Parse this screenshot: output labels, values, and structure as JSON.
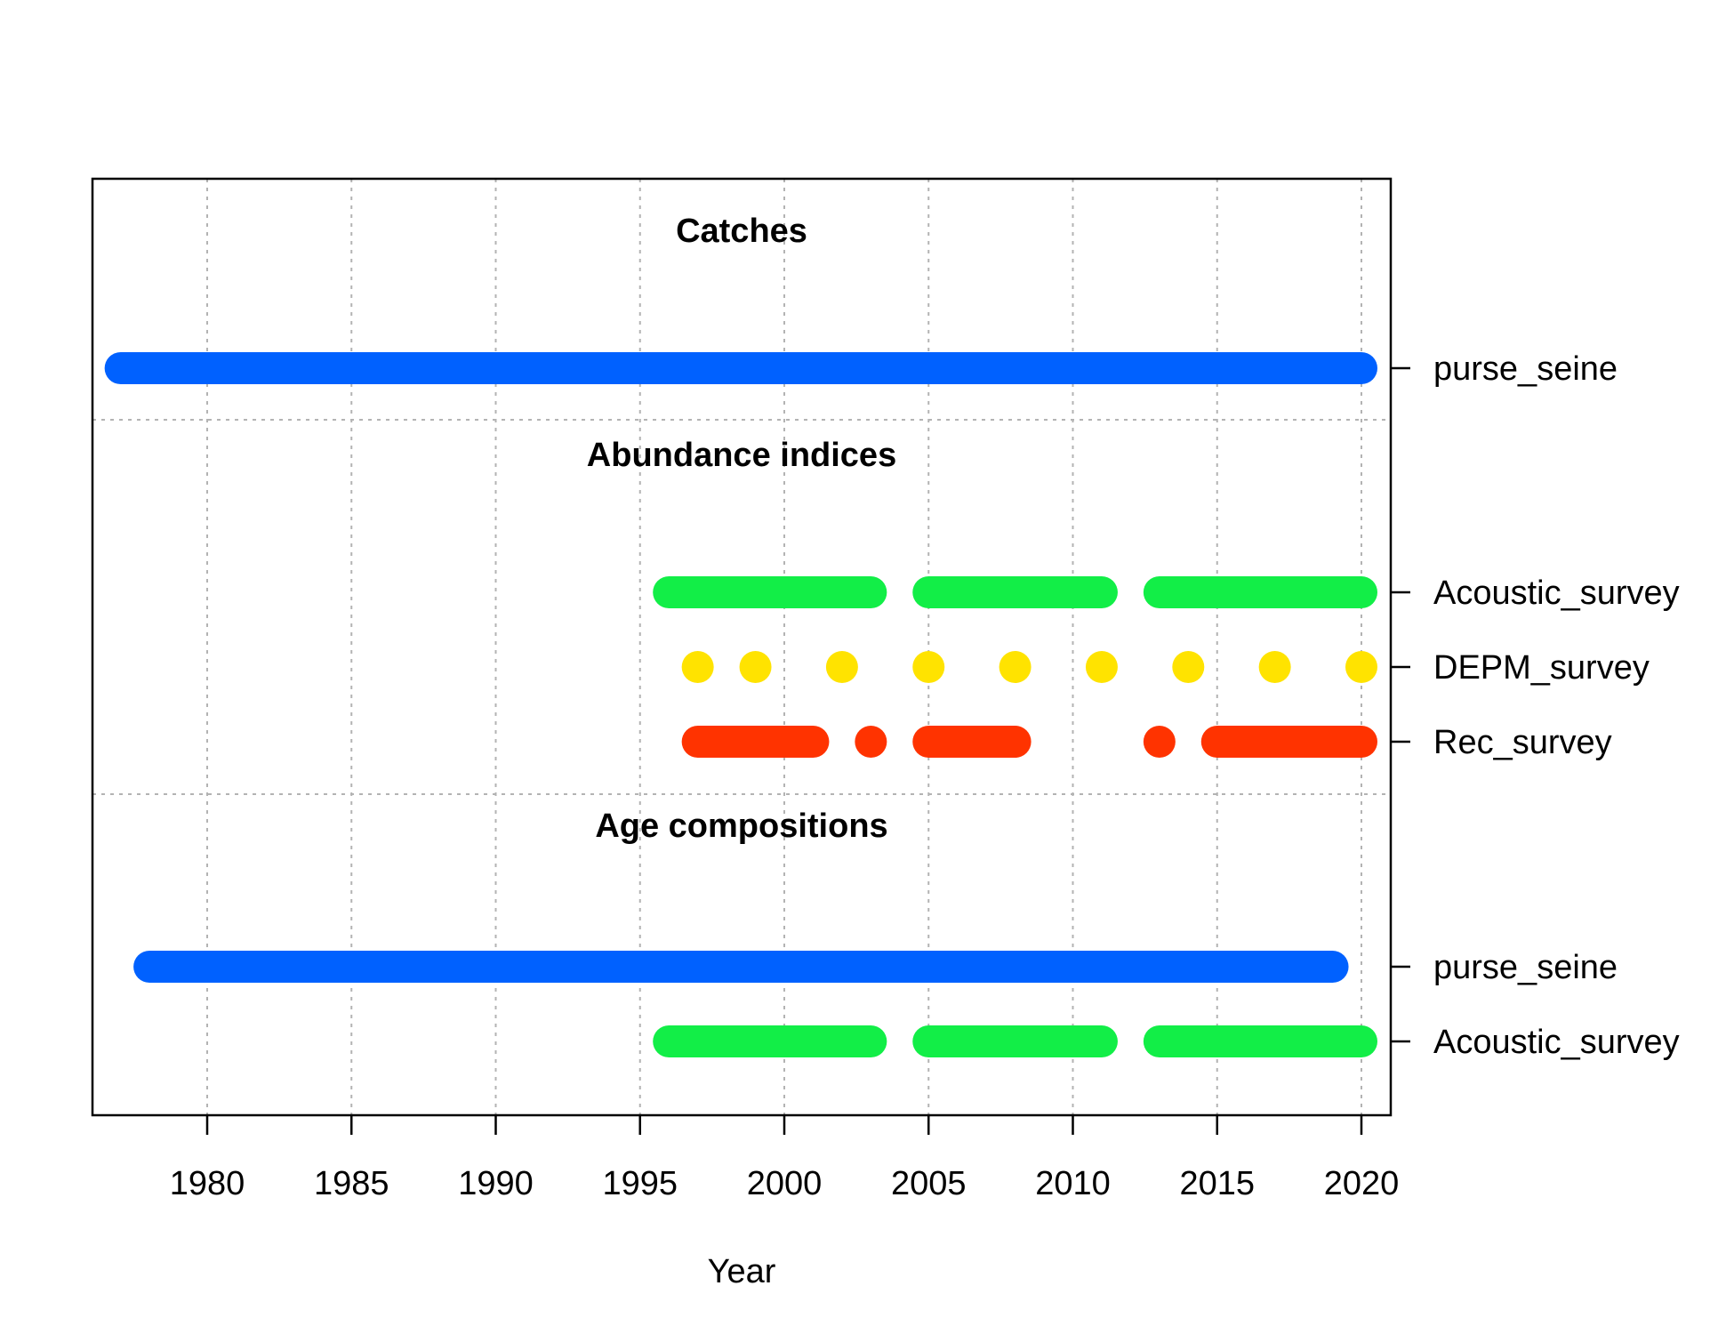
{
  "chart_data": {
    "type": "timeline",
    "xlabel": "Year",
    "xlim": [
      1976,
      2021
    ],
    "x_ticks": [
      1980,
      1985,
      1990,
      1995,
      2000,
      2005,
      2010,
      2015,
      2020
    ],
    "grid": true,
    "colors": {
      "purse_seine": "#0061FF",
      "Acoustic_survey": "#12EE47",
      "DEPM_survey": "#FFE300",
      "Rec_survey": "#FF3300"
    },
    "sections": [
      {
        "title": "Catches",
        "rows": [
          {
            "label": "purse_seine",
            "color": "#0061FF",
            "segments": [
              [
                1977,
                2020
              ]
            ],
            "points": []
          }
        ]
      },
      {
        "title": "Abundance indices",
        "rows": [
          {
            "label": "Acoustic_survey",
            "color": "#12EE47",
            "segments": [
              [
                1996,
                2003
              ],
              [
                2005,
                2011
              ],
              [
                2013,
                2020
              ]
            ],
            "points": []
          },
          {
            "label": "DEPM_survey",
            "color": "#FFE300",
            "segments": [],
            "points": [
              1997,
              1999,
              2002,
              2005,
              2008,
              2011,
              2014,
              2017,
              2020
            ]
          },
          {
            "label": "Rec_survey",
            "color": "#FF3300",
            "segments": [
              [
                1997,
                2001
              ],
              [
                2005,
                2008
              ],
              [
                2015,
                2020
              ]
            ],
            "points": [
              2003,
              2013
            ]
          }
        ]
      },
      {
        "title": "Age compositions",
        "rows": [
          {
            "label": "purse_seine",
            "color": "#0061FF",
            "segments": [
              [
                1978,
                2019
              ]
            ],
            "points": []
          },
          {
            "label": "Acoustic_survey",
            "color": "#12EE47",
            "segments": [
              [
                1996,
                2003
              ],
              [
                2005,
                2011
              ],
              [
                2013,
                2020
              ]
            ],
            "points": []
          }
        ]
      }
    ]
  }
}
